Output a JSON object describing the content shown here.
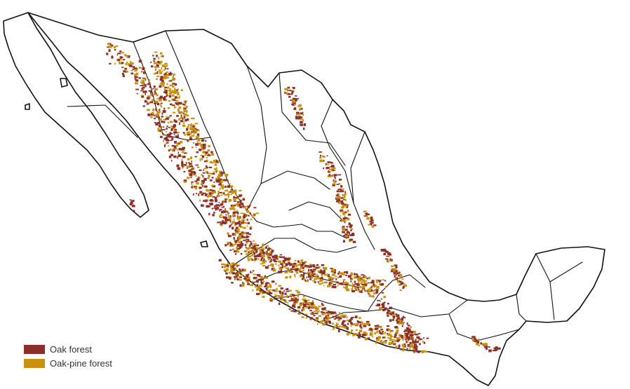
{
  "legend": {
    "items": [
      {
        "label": "Oak forest",
        "color": "#8c2f2a"
      },
      {
        "label": "Oak-pine forest",
        "color": "#c8920e"
      }
    ]
  },
  "colors": {
    "oak_forest": "#8c2f2a",
    "oak_pine_forest": "#c8920e",
    "outline": "#111111",
    "land": "#ffffff",
    "background": "#ffffff"
  }
}
